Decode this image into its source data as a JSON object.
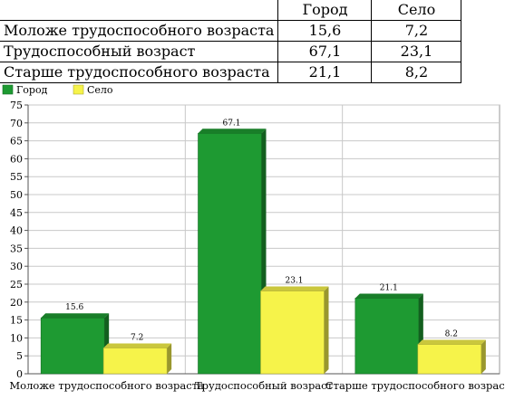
{
  "table": {
    "headers": [
      "",
      "Город",
      "Село"
    ],
    "rows": [
      [
        "Моложе трудоспособного возраста",
        "15,6",
        "7,2"
      ],
      [
        "Трудоспособный возраст",
        "67,1",
        "23,1"
      ],
      [
        "Старше трудоспособного возраста",
        "21,1",
        "8,2"
      ]
    ]
  },
  "chart_data": {
    "type": "bar",
    "categories": [
      "Моложе трудоспособного возраста",
      "Трудоспособный возраст",
      "Старше трудоспособного возраста"
    ],
    "series": [
      {
        "name": "Город",
        "values": [
          15.6,
          67.1,
          21.1
        ],
        "labels": [
          "15.6",
          "67.1",
          "21.1"
        ],
        "color": "#1e9a32"
      },
      {
        "name": "Село",
        "values": [
          7.2,
          23.1,
          8.2
        ],
        "labels": [
          "7.2",
          "23.1",
          "8.2"
        ],
        "color": "#f6f34a"
      }
    ],
    "ylim": [
      0,
      75
    ],
    "yticks": [
      "0",
      "5",
      "10",
      "15",
      "20",
      "25",
      "30",
      "35",
      "40",
      "45",
      "50",
      "55",
      "60",
      "65",
      "70",
      "75"
    ],
    "grid": true,
    "legend_position": "top-left",
    "bar_style": "3d"
  }
}
